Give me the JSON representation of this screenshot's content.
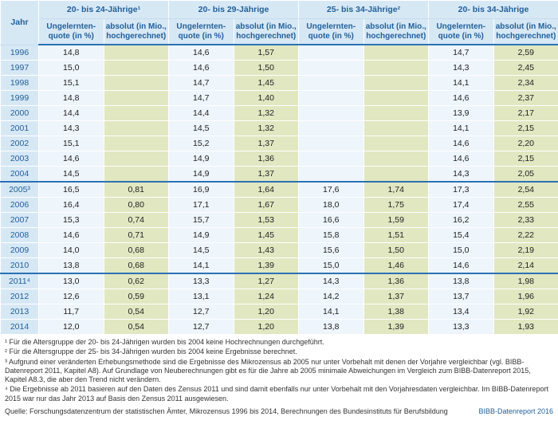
{
  "table": {
    "year_header": "Jahr",
    "groups": [
      {
        "label": "20- bis 24-Jährige¹",
        "sub": [
          "Ungelernten-\nquote (in %)",
          "absolut (in Mio.,\nhochgerechnet)"
        ]
      },
      {
        "label": "20- bis 29-Jährige",
        "sub": [
          "Ungelernten-\nquote (in %)",
          "absolut (in Mio.,\nhochgerechnet)"
        ]
      },
      {
        "label": "25- bis 34-Jährige²",
        "sub": [
          "Ungelernten-\nquote (in %)",
          "absolut (in Mio.,\nhochgerechnet)"
        ]
      },
      {
        "label": "20- bis 34-Jährige",
        "sub": [
          "Ungelernten-\nquote (in %)",
          "absolut (in Mio.,\nhochgerechnet)"
        ]
      }
    ],
    "rows": [
      {
        "year": "1996",
        "g1q": "14,8",
        "g1a": "",
        "g2q": "14,6",
        "g2a": "1,57",
        "g3q": "",
        "g3a": "",
        "g4q": "14,7",
        "g4a": "2,59"
      },
      {
        "year": "1997",
        "g1q": "15,0",
        "g1a": "",
        "g2q": "14,6",
        "g2a": "1,50",
        "g3q": "",
        "g3a": "",
        "g4q": "14,3",
        "g4a": "2,45"
      },
      {
        "year": "1998",
        "g1q": "15,1",
        "g1a": "",
        "g2q": "14,7",
        "g2a": "1,45",
        "g3q": "",
        "g3a": "",
        "g4q": "14,1",
        "g4a": "2,34"
      },
      {
        "year": "1999",
        "g1q": "14,8",
        "g1a": "",
        "g2q": "14,7",
        "g2a": "1,40",
        "g3q": "",
        "g3a": "",
        "g4q": "14,6",
        "g4a": "2,37"
      },
      {
        "year": "2000",
        "g1q": "14,4",
        "g1a": "",
        "g2q": "14,4",
        "g2a": "1,32",
        "g3q": "",
        "g3a": "",
        "g4q": "13,9",
        "g4a": "2,17"
      },
      {
        "year": "2001",
        "g1q": "14,3",
        "g1a": "",
        "g2q": "14,5",
        "g2a": "1,32",
        "g3q": "",
        "g3a": "",
        "g4q": "14,1",
        "g4a": "2,15"
      },
      {
        "year": "2002",
        "g1q": "15,1",
        "g1a": "",
        "g2q": "15,2",
        "g2a": "1,37",
        "g3q": "",
        "g3a": "",
        "g4q": "14,6",
        "g4a": "2,20"
      },
      {
        "year": "2003",
        "g1q": "14,6",
        "g1a": "",
        "g2q": "14,9",
        "g2a": "1,36",
        "g3q": "",
        "g3a": "",
        "g4q": "14,6",
        "g4a": "2,15"
      },
      {
        "year": "2004",
        "g1q": "14,5",
        "g1a": "",
        "g2q": "14,9",
        "g2a": "1,37",
        "g3q": "",
        "g3a": "",
        "g4q": "14,3",
        "g4a": "2,05"
      },
      {
        "year": "2005³",
        "g1q": "16,5",
        "g1a": "0,81",
        "g2q": "16,9",
        "g2a": "1,64",
        "g3q": "17,6",
        "g3a": "1,74",
        "g4q": "17,3",
        "g4a": "2,54",
        "sep": true
      },
      {
        "year": "2006",
        "g1q": "16,4",
        "g1a": "0,80",
        "g2q": "17,1",
        "g2a": "1,67",
        "g3q": "18,0",
        "g3a": "1,75",
        "g4q": "17,4",
        "g4a": "2,55"
      },
      {
        "year": "2007",
        "g1q": "15,3",
        "g1a": "0,74",
        "g2q": "15,7",
        "g2a": "1,53",
        "g3q": "16,6",
        "g3a": "1,59",
        "g4q": "16,2",
        "g4a": "2,33"
      },
      {
        "year": "2008",
        "g1q": "14,6",
        "g1a": "0,71",
        "g2q": "14,9",
        "g2a": "1,45",
        "g3q": "15,8",
        "g3a": "1,51",
        "g4q": "15,4",
        "g4a": "2,22"
      },
      {
        "year": "2009",
        "g1q": "14,0",
        "g1a": "0,68",
        "g2q": "14,5",
        "g2a": "1,43",
        "g3q": "15,6",
        "g3a": "1,50",
        "g4q": "15,0",
        "g4a": "2,19"
      },
      {
        "year": "2010",
        "g1q": "13,8",
        "g1a": "0,68",
        "g2q": "14,1",
        "g2a": "1,39",
        "g3q": "15,0",
        "g3a": "1,46",
        "g4q": "14,6",
        "g4a": "2,14"
      },
      {
        "year": "2011⁴",
        "g1q": "13,0",
        "g1a": "0,62",
        "g2q": "13,3",
        "g2a": "1,27",
        "g3q": "14,3",
        "g3a": "1,36",
        "g4q": "13,8",
        "g4a": "1,98",
        "sep": true
      },
      {
        "year": "2012",
        "g1q": "12,6",
        "g1a": "0,59",
        "g2q": "13,1",
        "g2a": "1,24",
        "g3q": "14,2",
        "g3a": "1,37",
        "g4q": "13,7",
        "g4a": "1,96"
      },
      {
        "year": "2013",
        "g1q": "11,7",
        "g1a": "0,54",
        "g2q": "12,7",
        "g2a": "1,20",
        "g3q": "14,1",
        "g3a": "1,38",
        "g4q": "13,4",
        "g4a": "1,92"
      },
      {
        "year": "2014",
        "g1q": "12,0",
        "g1a": "0,54",
        "g2q": "12,7",
        "g2a": "1,20",
        "g3q": "13,8",
        "g3a": "1,39",
        "g4q": "13,3",
        "g4a": "1,93"
      }
    ],
    "colors": {
      "header_bg": "#d7e8f5",
      "header_fg": "#1f5f9a",
      "year_bg": "#d7e8f5",
      "quote_bg": "#eef5fb",
      "abs_bg": "#e1e7c1",
      "sep_line": "#2b72b4"
    }
  },
  "footnotes": [
    "¹ Für die Altersgruppe der 20- bis 24-Jährigen wurden bis 2004 keine Hochrechnungen durchgeführt.",
    "² Für die Altersgruppe der 25- bis 34-Jährigen wurden bis 2004 keine Ergebnisse berechnet.",
    "³ Aufgrund einer veränderten Erhebungsmethode sind die Ergebnisse des Mikrozensus ab 2005 nur unter Vorbehalt mit denen der Vorjahre vergleichbar (vgl. BIBB-Datenreport 2011, Kapitel A8). Auf Grundlage von Neuberechnungen gibt es für die Jahre ab 2005 minimale Abweichungen im Vergleich zum BIBB-Datenreport 2015, Kapitel A8.3, die aber den Trend nicht verändern.",
    "⁴ Die Ergebnisse ab 2011 basieren auf den Daten des Zensus 2011 und sind damit ebenfalls nur unter Vorbehalt mit den Vorjahresdaten vergleichbar. Im BIBB-Datenreport 2015 war nur das Jahr 2013 auf Basis den Zensus 2011 ausgewiesen."
  ],
  "source": "Quelle: Forschungsdatenzentrum der statistischen Ämter, Mikrozensus 1996 bis 2014, Berechnungen des Bundesinstituts für Berufsbildung",
  "report": "BIBB-Datenreport 2016"
}
